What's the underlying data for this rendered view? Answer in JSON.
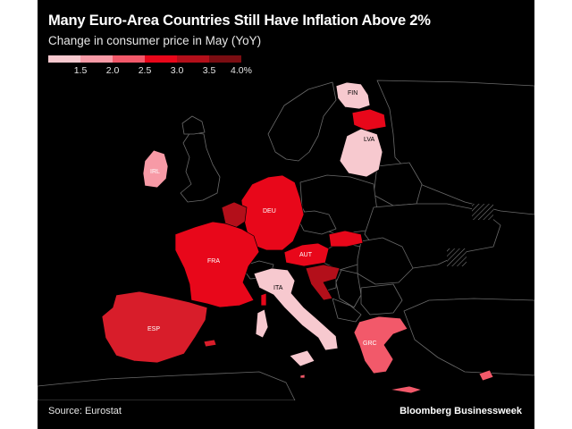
{
  "title": "Many Euro-Area Countries Still Have Inflation Above 2%",
  "subtitle": "Change in consumer price in May (YoY)",
  "legend": {
    "ticks": [
      "1.5",
      "2.0",
      "2.5",
      "3.0",
      "3.5",
      "4.0%"
    ],
    "colors": [
      "#f7c9cf",
      "#f79aa6",
      "#f2596a",
      "#e8071a",
      "#b30f1a",
      "#7a0d12"
    ]
  },
  "countries": [
    {
      "code": "FIN",
      "label": "FIN",
      "color": "#f7c9cf"
    },
    {
      "code": "EST",
      "label": "",
      "color": "#e8071a"
    },
    {
      "code": "LVA",
      "label": "LVA",
      "color": "#f7c9cf"
    },
    {
      "code": "IRL",
      "label": "IRL",
      "color": "#f79aa6"
    },
    {
      "code": "DEU",
      "label": "DEU",
      "color": "#e8071a"
    },
    {
      "code": "BEL",
      "label": "",
      "color": "#b30f1a"
    },
    {
      "code": "FRA",
      "label": "FRA",
      "color": "#e8071a"
    },
    {
      "code": "AUT",
      "label": "AUT",
      "color": "#e8071a"
    },
    {
      "code": "SVK",
      "label": "",
      "color": "#e8071a"
    },
    {
      "code": "HRV",
      "label": "",
      "color": "#b30f1a"
    },
    {
      "code": "ITA",
      "label": "ITA",
      "color": "#f7c9cf"
    },
    {
      "code": "ESP",
      "label": "ESP",
      "color": "#d81d2a"
    },
    {
      "code": "GRC",
      "label": "GRC",
      "color": "#f2596a"
    },
    {
      "code": "CYP",
      "label": "",
      "color": "#f2596a"
    },
    {
      "code": "MLT",
      "label": "",
      "color": "#f2596a"
    }
  ],
  "source": "Source: Eurostat",
  "brand": "Bloomberg Businessweek"
}
